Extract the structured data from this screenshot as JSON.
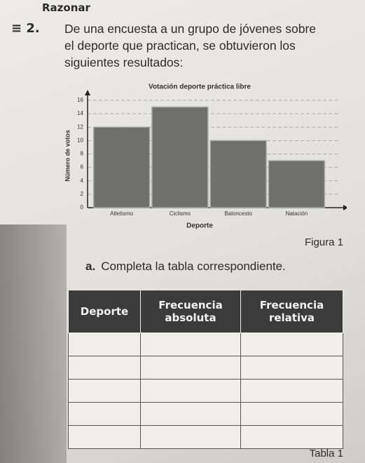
{
  "header": {
    "section": "Razonar"
  },
  "problem": {
    "number": "2.",
    "text": "De una encuesta a un grupo de jóvenes sobre el deporte que practican, se obtuvieron los siguientes resultados:"
  },
  "chart_data": {
    "type": "bar",
    "title": "Votación deporte práctica libre",
    "x_label": "Deporte",
    "y_label": "Número de votos",
    "categories": [
      "Atletismo",
      "Ciclismo",
      "Baloncesto",
      "Natación"
    ],
    "values": [
      12,
      15,
      10,
      7
    ],
    "color": "#6f6f6c",
    "ylim": [
      0,
      17
    ],
    "yticks": [
      0,
      2,
      4,
      6,
      8,
      10,
      12,
      14,
      16
    ],
    "grid": true
  },
  "figure_caption": "Figura 1",
  "task": {
    "letter": "a.",
    "text": "Completa la tabla correspondiente."
  },
  "table": {
    "header": [
      "Deporte",
      "Frecuencia absoluta",
      "Frecuencia relativa"
    ]
  },
  "table_caption": "Tabla 1"
}
